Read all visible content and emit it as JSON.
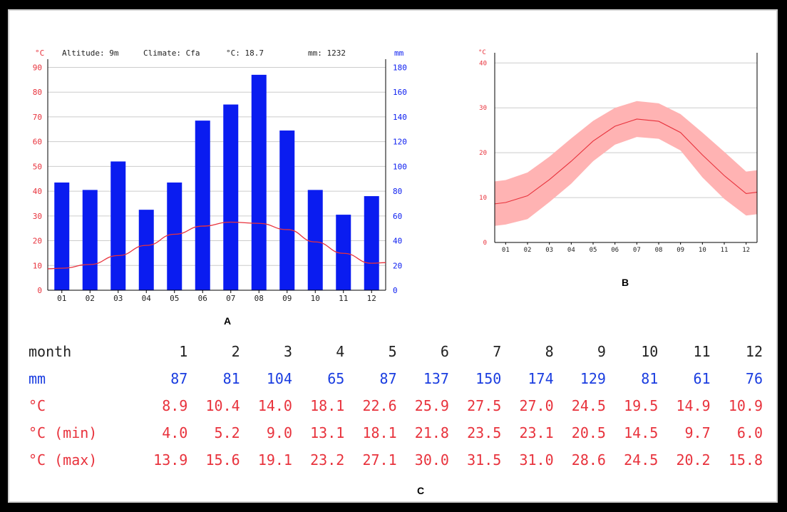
{
  "panels": {
    "a": "A",
    "b": "B",
    "c": "C"
  },
  "colors": {
    "precip": "#0a1cf0",
    "temp": "#e8323c",
    "band": "#ffb3b3",
    "text": "#222222",
    "blue_text": "#1a3de0",
    "grid": "#cccccc"
  },
  "chart_data": [
    {
      "type": "bar",
      "panel": "A",
      "header": {
        "altitude": "Altitude: 9m",
        "climate": "Climate: Cfa",
        "temp": "°C: 18.7",
        "precip": "mm: 1232"
      },
      "y_left_unit": "°C",
      "y_right_unit": "mm",
      "categories": [
        "01",
        "02",
        "03",
        "04",
        "05",
        "06",
        "07",
        "08",
        "09",
        "10",
        "11",
        "12"
      ],
      "y_left_ticks": [
        0,
        10,
        20,
        30,
        40,
        50,
        60,
        70,
        80,
        90
      ],
      "y_right_ticks": [
        0,
        20,
        40,
        60,
        80,
        100,
        120,
        140,
        160,
        180
      ],
      "y_left_range": [
        0,
        91
      ],
      "y_right_range": [
        0,
        182
      ],
      "grid": true,
      "series": [
        {
          "kind": "bar",
          "axis": "right",
          "values": [
            87,
            81,
            104,
            65,
            87,
            137,
            150,
            174,
            129,
            81,
            61,
            76
          ]
        },
        {
          "kind": "line",
          "axis": "left",
          "values": [
            8.9,
            10.4,
            14.0,
            18.1,
            22.6,
            25.9,
            27.5,
            27.0,
            24.5,
            19.5,
            14.9,
            10.9
          ]
        }
      ]
    },
    {
      "type": "area",
      "panel": "B",
      "y_unit": "°C",
      "categories": [
        "01",
        "02",
        "03",
        "04",
        "05",
        "06",
        "07",
        "08",
        "09",
        "10",
        "11",
        "12"
      ],
      "y_ticks": [
        0,
        10,
        20,
        30,
        40
      ],
      "y_range": [
        0,
        41
      ],
      "grid": true,
      "series": [
        {
          "kind": "line",
          "values": [
            8.9,
            10.4,
            14.0,
            18.1,
            22.6,
            25.9,
            27.5,
            27.0,
            24.5,
            19.5,
            14.9,
            10.9
          ]
        },
        {
          "kind": "band_low",
          "values": [
            4.0,
            5.2,
            9.0,
            13.1,
            18.1,
            21.8,
            23.5,
            23.1,
            20.5,
            14.5,
            9.7,
            6.0
          ]
        },
        {
          "kind": "band_high",
          "values": [
            13.9,
            15.6,
            19.1,
            23.2,
            27.1,
            30.0,
            31.5,
            31.0,
            28.6,
            24.5,
            20.2,
            15.8
          ]
        }
      ]
    }
  ],
  "table": {
    "headers": [
      "month",
      "mm",
      "°C",
      "°C (min)",
      "°C (max)"
    ],
    "months": [
      "1",
      "2",
      "3",
      "4",
      "5",
      "6",
      "7",
      "8",
      "9",
      "10",
      "11",
      "12"
    ],
    "mm": [
      "87",
      "81",
      "104",
      "65",
      "87",
      "137",
      "150",
      "174",
      "129",
      "81",
      "61",
      "76"
    ],
    "temp": [
      "8.9",
      "10.4",
      "14.0",
      "18.1",
      "22.6",
      "25.9",
      "27.5",
      "27.0",
      "24.5",
      "19.5",
      "14.9",
      "10.9"
    ],
    "temp_min": [
      "4.0",
      "5.2",
      "9.0",
      "13.1",
      "18.1",
      "21.8",
      "23.5",
      "23.1",
      "20.5",
      "14.5",
      "9.7",
      "6.0"
    ],
    "temp_max": [
      "13.9",
      "15.6",
      "19.1",
      "23.2",
      "27.1",
      "30.0",
      "31.5",
      "31.0",
      "28.6",
      "24.5",
      "20.2",
      "15.8"
    ]
  }
}
